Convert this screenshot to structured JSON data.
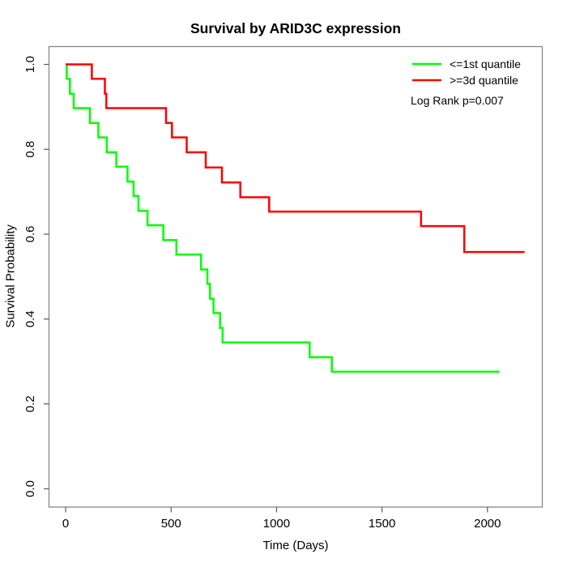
{
  "chart_data": {
    "type": "line",
    "subtype": "kaplan-meier-step",
    "title": "Survival by ARID3C expression",
    "xlabel": "Time (Days)",
    "ylabel": "Survival Probability",
    "xlim": [
      -79,
      2260
    ],
    "ylim": [
      -0.043,
      1.042
    ],
    "grid": false,
    "legend_position": "top-right",
    "annotation": "Log Rank p=0.007",
    "x_ticks": [
      {
        "v": 0,
        "label": "0"
      },
      {
        "v": 500,
        "label": "500"
      },
      {
        "v": 1000,
        "label": "1000"
      },
      {
        "v": 1500,
        "label": "1500"
      },
      {
        "v": 2000,
        "label": "2000"
      }
    ],
    "y_ticks": [
      {
        "v": 0.0,
        "label": "0.0"
      },
      {
        "v": 0.2,
        "label": "0.2"
      },
      {
        "v": 0.4,
        "label": "0.4"
      },
      {
        "v": 0.6,
        "label": "0.6"
      },
      {
        "v": 0.8,
        "label": "0.8"
      },
      {
        "v": 1.0,
        "label": "1.0"
      }
    ],
    "series": [
      {
        "name": "<=1st quantile",
        "color": "#00ff00",
        "end_x": 2057,
        "points": [
          [
            0,
            1.0
          ],
          [
            5,
            0.966
          ],
          [
            20,
            0.931
          ],
          [
            38,
            0.897
          ],
          [
            115,
            0.862
          ],
          [
            155,
            0.828
          ],
          [
            195,
            0.793
          ],
          [
            240,
            0.759
          ],
          [
            293,
            0.724
          ],
          [
            322,
            0.69
          ],
          [
            345,
            0.655
          ],
          [
            388,
            0.621
          ],
          [
            463,
            0.586
          ],
          [
            525,
            0.552
          ],
          [
            642,
            0.517
          ],
          [
            672,
            0.483
          ],
          [
            684,
            0.448
          ],
          [
            701,
            0.414
          ],
          [
            732,
            0.379
          ],
          [
            744,
            0.345
          ],
          [
            1157,
            0.31
          ],
          [
            1262,
            0.276
          ]
        ]
      },
      {
        "name": ">=3d quantile",
        "color": "#ff0000",
        "end_x": 2176,
        "points": [
          [
            0,
            1.0
          ],
          [
            124,
            0.966
          ],
          [
            186,
            0.931
          ],
          [
            193,
            0.897
          ],
          [
            476,
            0.862
          ],
          [
            504,
            0.828
          ],
          [
            574,
            0.793
          ],
          [
            664,
            0.757
          ],
          [
            741,
            0.722
          ],
          [
            828,
            0.687
          ],
          [
            965,
            0.653
          ],
          [
            1685,
            0.619
          ],
          [
            1890,
            0.558
          ]
        ]
      }
    ],
    "frame_color": "#878787",
    "tick_color": "#5a5a5a"
  }
}
